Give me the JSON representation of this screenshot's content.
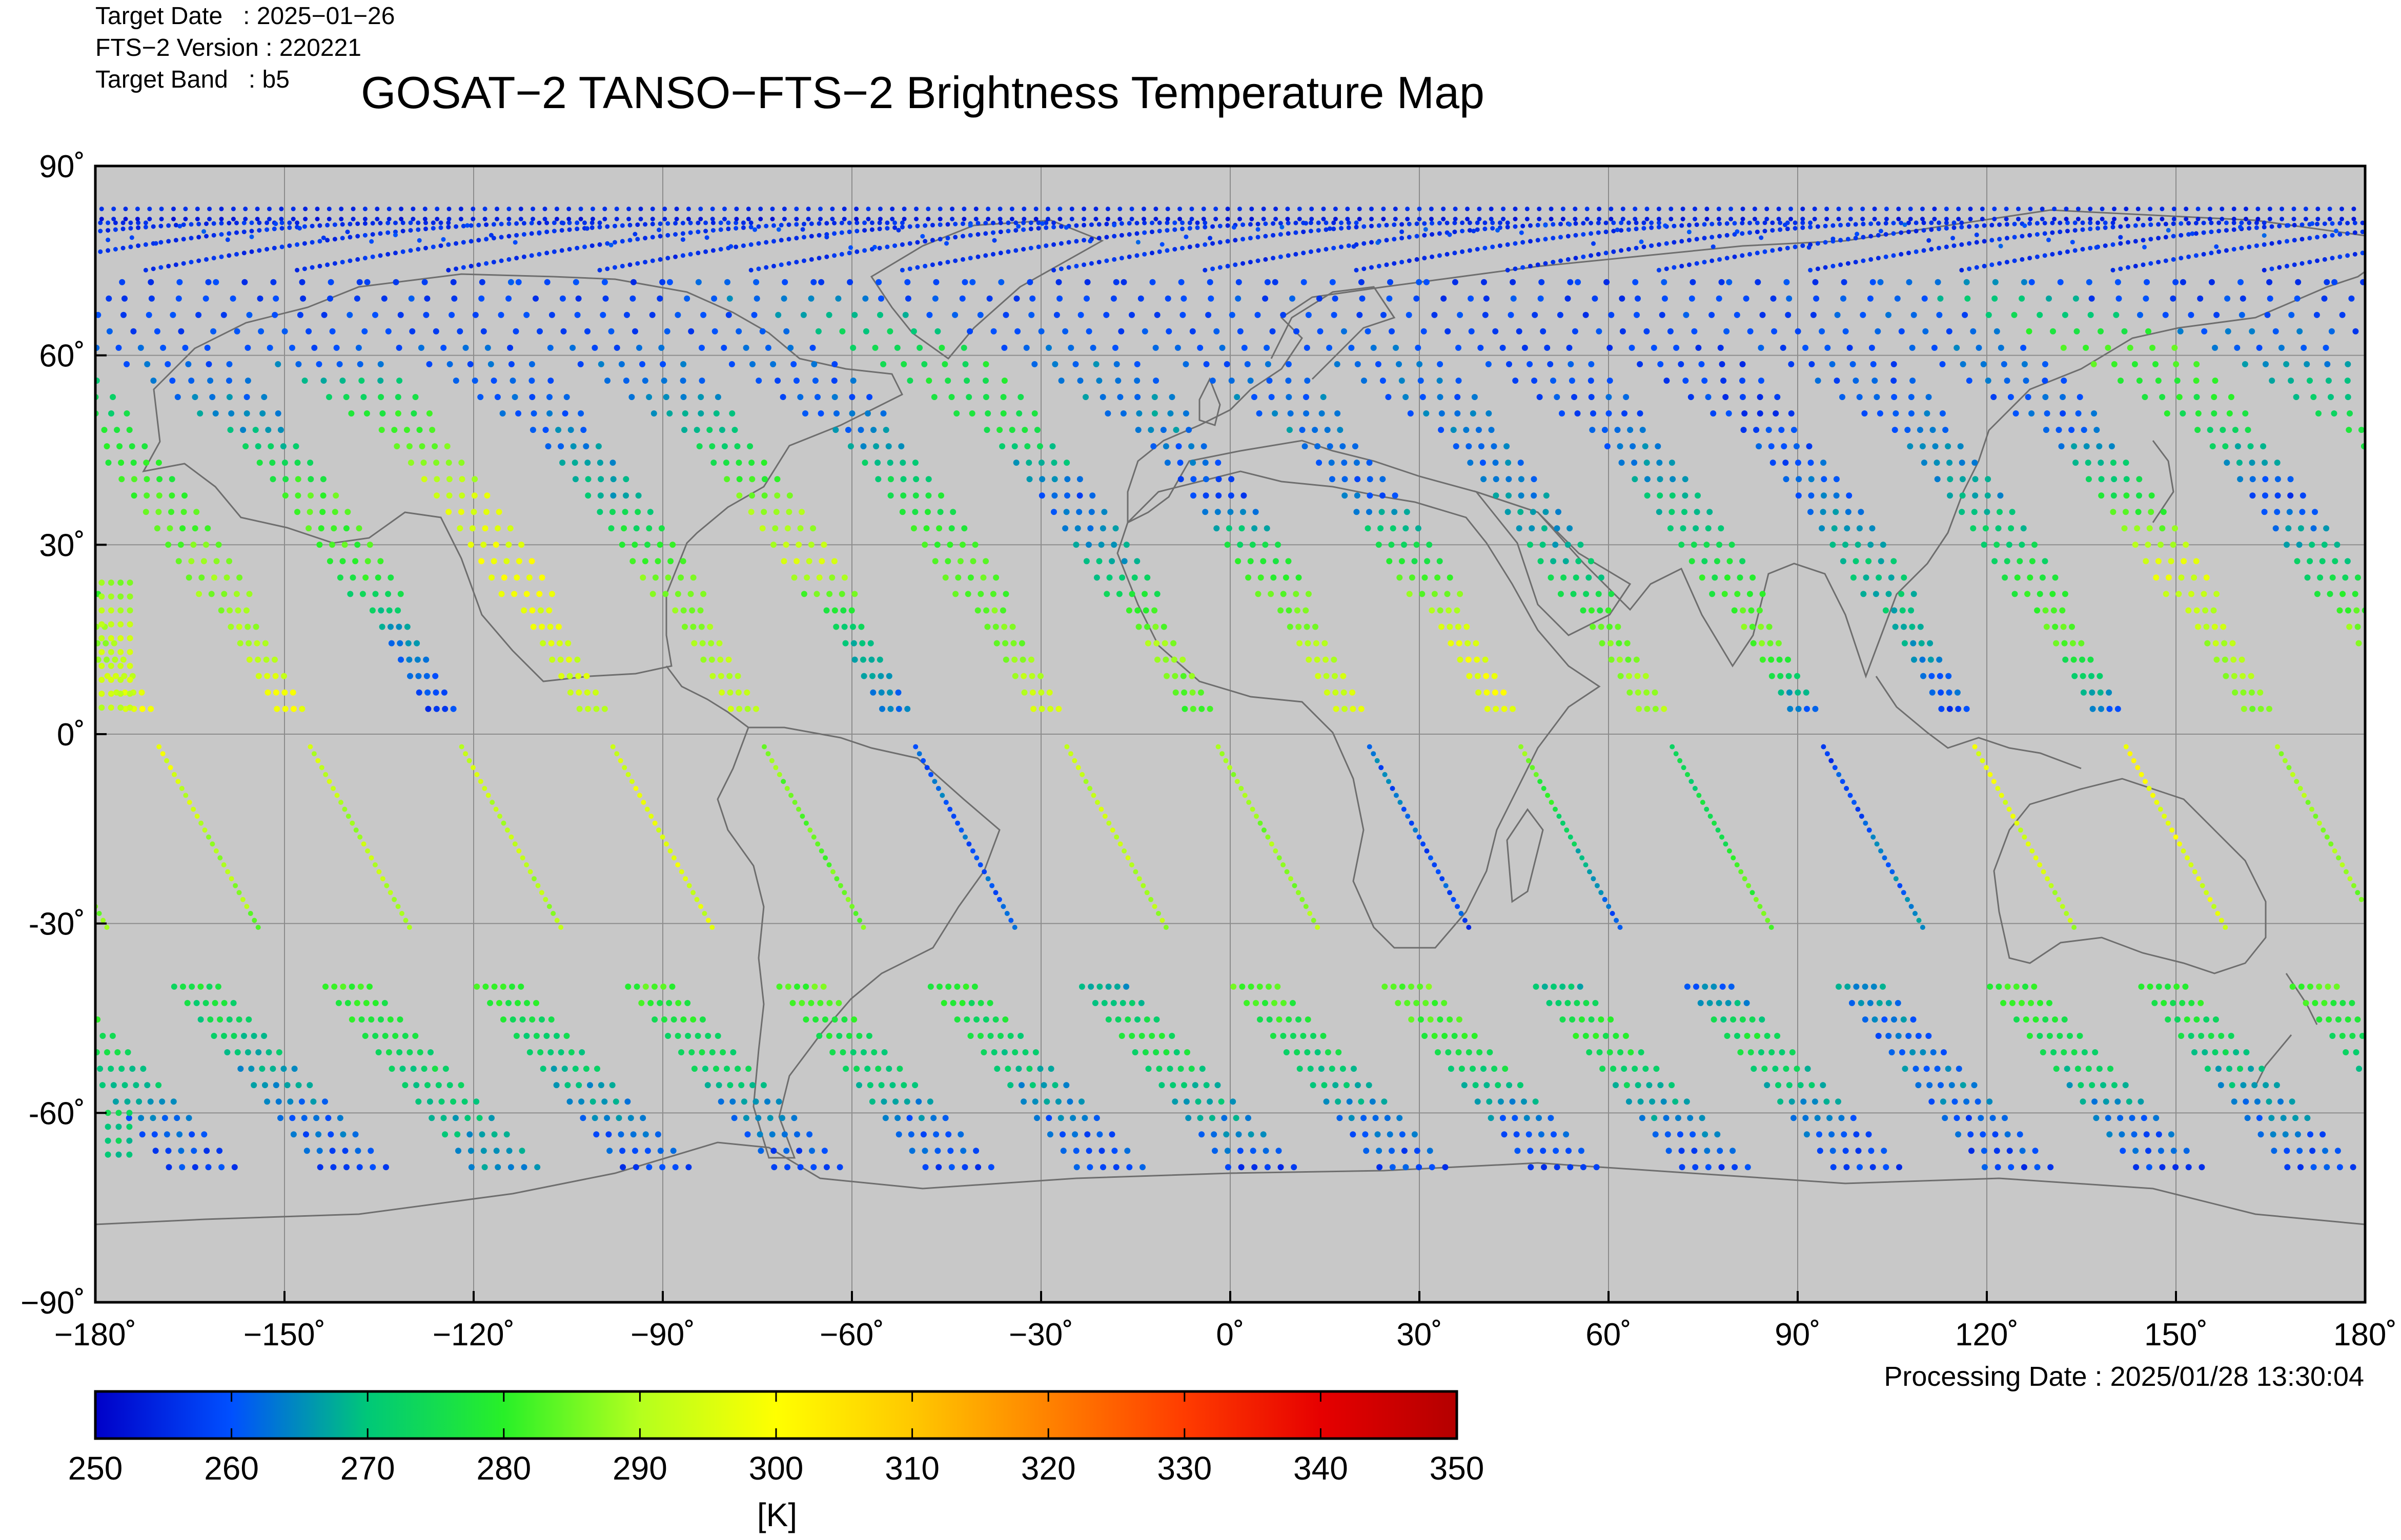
{
  "header": {
    "target_date_line": "Target Date   : 2025−01−26",
    "version_line": "FTS−2 Version : 220221",
    "band_line": "Target Band   : b5"
  },
  "title": "GOSAT−2 TANSO−FTS−2 Brightness Temperature Map",
  "processing_date": "Processing Date : 2025/01/28 13:30:04",
  "colors": {
    "map_background": "#c8c8c8",
    "grid": "#8c8c8c",
    "coastline": "#6e6e6e",
    "colormap": [
      "#0000c8",
      "#0050ff",
      "#00c878",
      "#28f028",
      "#b4ff1e",
      "#ffff00",
      "#ffc800",
      "#ff8200",
      "#ff3c00",
      "#e60000",
      "#b40000"
    ]
  },
  "chart_data": {
    "type": "scatter",
    "projection": "equirectangular",
    "xlim": [
      -180,
      180
    ],
    "ylim": [
      -90,
      90
    ],
    "x_ticks": [
      -180,
      -150,
      -120,
      -90,
      -60,
      -30,
      0,
      30,
      60,
      90,
      120,
      150,
      180
    ],
    "x_tick_labels": [
      "−180˚",
      "−150˚",
      "−120˚",
      "−90˚",
      "−60˚",
      "−30˚",
      "0˚",
      "30˚",
      "60˚",
      "90˚",
      "120˚",
      "150˚",
      "180˚"
    ],
    "y_ticks": [
      90,
      60,
      30,
      0,
      -30,
      -60,
      -90
    ],
    "y_tick_labels": [
      "90˚",
      "60˚",
      "30˚",
      "0˚",
      "-30˚",
      "-60˚",
      "−90˚"
    ],
    "grid": true,
    "colorbar": {
      "range": [
        250,
        350
      ],
      "ticks": [
        250,
        260,
        270,
        280,
        290,
        300,
        310,
        320,
        330,
        340,
        350
      ],
      "tick_labels": [
        "250",
        "260",
        "270",
        "280",
        "290",
        "300",
        "310",
        "320",
        "330",
        "340",
        "350"
      ],
      "unit_label": "[K]"
    },
    "swaths": [
      {
        "equator_lon": -171,
        "north_tb": [
          263,
          283,
          276,
          258,
          272,
          288,
          297
        ],
        "south_tb": [
          296,
          286,
          281,
          276,
          272,
          268,
          266
        ]
      },
      {
        "equator_lon": -147,
        "north_tb": [
          258,
          262,
          276,
          281,
          286,
          290,
          298
        ],
        "south_tb": [
          292,
          289,
          280,
          274,
          268,
          262,
          258
        ]
      },
      {
        "equator_lon": -123,
        "north_tb": [
          258,
          260,
          265,
          283,
          281,
          264,
          258
        ],
        "south_tb": [
          292,
          290,
          282,
          276,
          270,
          262,
          258
        ]
      },
      {
        "equator_lon": -99,
        "north_tb": [
          258,
          259,
          282,
          294,
          298,
          295,
          292
        ],
        "south_tb": [
          296,
          294,
          283,
          276,
          270,
          262,
          258
        ]
      },
      {
        "equator_lon": -75,
        "north_tb": [
          258,
          260,
          262,
          268,
          284,
          289,
          292
        ],
        "south_tb": [
          286,
          284,
          278,
          274,
          268,
          262,
          258
        ]
      },
      {
        "equator_lon": -51,
        "north_tb": [
          258,
          260,
          268,
          285,
          294,
          268,
          262
        ],
        "south_tb": [
          262,
          259,
          268,
          276,
          272,
          264,
          258
        ]
      },
      {
        "equator_lon": -27,
        "north_tb": [
          258,
          260,
          262,
          276,
          282,
          286,
          293
        ],
        "south_tb": [
          292,
          290,
          283,
          276,
          270,
          262,
          258
        ]
      },
      {
        "equator_lon": -3,
        "north_tb": [
          259,
          276,
          277,
          260,
          268,
          288,
          283
        ],
        "south_tb": [
          286,
          288,
          284,
          280,
          272,
          262,
          258
        ]
      },
      {
        "equator_lon": 21,
        "north_tb": [
          258,
          262,
          265,
          259,
          280,
          288,
          295
        ],
        "south_tb": [
          262,
          258,
          270,
          279,
          272,
          264,
          258
        ]
      },
      {
        "equator_lon": 45,
        "north_tb": [
          258,
          260,
          264,
          261,
          279,
          296,
          298
        ],
        "south_tb": [
          286,
          258,
          262,
          276,
          270,
          262,
          258
        ]
      },
      {
        "equator_lon": 69,
        "north_tb": [
          258,
          261,
          262,
          264,
          270,
          285,
          290
        ],
        "south_tb": [
          272,
          284,
          266,
          262,
          264,
          260,
          258
        ]
      },
      {
        "equator_lon": 93,
        "north_tb": [
          258,
          259,
          260,
          268,
          276,
          286,
          263
        ],
        "south_tb": [
          258,
          264,
          280,
          276,
          270,
          262,
          258
        ]
      },
      {
        "equator_lon": 117,
        "north_tb": [
          258,
          258,
          258,
          262,
          270,
          268,
          258
        ],
        "south_tb": [
          298,
          290,
          280,
          274,
          268,
          262,
          258
        ]
      },
      {
        "equator_lon": 141,
        "north_tb": [
          258,
          259,
          262,
          266,
          276,
          284,
          262
        ],
        "south_tb": [
          300,
          294,
          282,
          276,
          270,
          262,
          258
        ]
      },
      {
        "equator_lon": 165,
        "north_tb": [
          258,
          262,
          260,
          276,
          296,
          290,
          287
        ],
        "south_tb": [
          290,
          285,
          276,
          272,
          266,
          262,
          258
        ]
      }
    ],
    "wrap_swath_tb": [
      287,
      292,
      294,
      291
    ]
  }
}
